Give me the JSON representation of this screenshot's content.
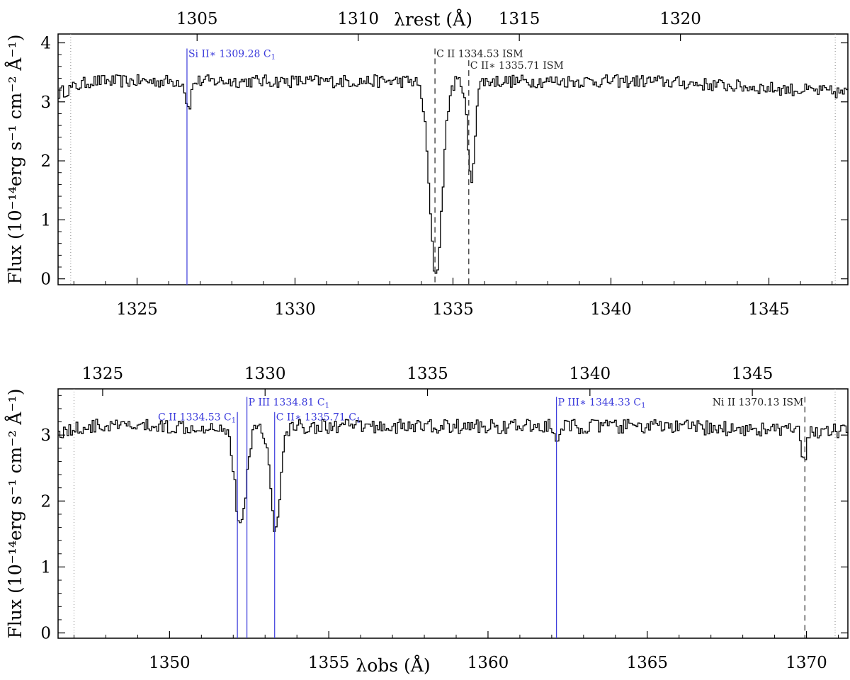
{
  "chart_data": [
    {
      "type": "line",
      "panel": "top",
      "xlabel_top": "λrest (Å)",
      "ylabel": "Flux (10⁻¹⁴erg s⁻¹ cm⁻² Å⁻¹)",
      "xlim": [
        1322.5,
        1347.5
      ],
      "ylim": [
        -0.1,
        4.15
      ],
      "x_ticks": [
        1325,
        1330,
        1335,
        1340,
        1345
      ],
      "y_ticks": [
        0,
        1,
        2,
        3,
        4
      ],
      "top_ticks": [
        {
          "label": "1305",
          "x": 1326.9
        },
        {
          "label": "1310",
          "x": 1332.0
        },
        {
          "label": "1315",
          "x": 1337.1
        },
        {
          "label": "1320",
          "x": 1342.2
        }
      ],
      "edge_dotted": [
        1322.9,
        1347.1
      ],
      "continuum": {
        "base": 3.35,
        "start": 3.15,
        "end": 3.15
      },
      "features": [
        {
          "center": 1326.6,
          "depth": 0.45,
          "width": 0.08
        },
        {
          "center": 1334.43,
          "depth": 3.27,
          "width": 0.2
        },
        {
          "center": 1335.55,
          "depth": 1.7,
          "width": 0.11
        }
      ],
      "lines": [
        {
          "x": 1326.58,
          "label": "Si II∗ 1309.28 C",
          "sub": "1",
          "color": "#3a3adb",
          "style": "solid",
          "ann_y": 3.76
        },
        {
          "x": 1334.43,
          "label": "C II 1334.53 ISM",
          "sub": "",
          "color": "#222222",
          "style": "dashed",
          "ann_y": 3.76
        },
        {
          "x": 1335.5,
          "label": "C II∗ 1335.71 ISM",
          "sub": "",
          "color": "#222222",
          "style": "dashed",
          "ann_y": 3.56
        }
      ]
    },
    {
      "type": "line",
      "panel": "bottom",
      "xlabel": "λobs (Å)",
      "ylabel": "Flux (10⁻¹⁴erg s⁻¹ cm⁻² Å⁻¹)",
      "xlim": [
        1346.5,
        1371.3
      ],
      "ylim": [
        -0.08,
        3.7
      ],
      "x_ticks": [
        1350,
        1355,
        1360,
        1365,
        1370
      ],
      "y_ticks": [
        0,
        1,
        2,
        3
      ],
      "top_ticks": [
        {
          "label": "1325",
          "x": 1347.9
        },
        {
          "label": "1330",
          "x": 1353.0
        },
        {
          "label": "1335",
          "x": 1358.1
        },
        {
          "label": "1340",
          "x": 1363.2
        },
        {
          "label": "1345",
          "x": 1368.3
        }
      ],
      "edge_dotted": [
        1347.0,
        1370.9
      ],
      "continuum": {
        "base": 3.13,
        "start": 3.05,
        "end": 3.05
      },
      "features": [
        {
          "center": 1352.2,
          "depth": 1.55,
          "width": 0.17
        },
        {
          "center": 1353.3,
          "depth": 1.6,
          "width": 0.15
        },
        {
          "center": 1362.15,
          "depth": 0.3,
          "width": 0.06
        },
        {
          "center": 1369.9,
          "depth": 0.5,
          "width": 0.08
        }
      ],
      "lines": [
        {
          "x": 1352.13,
          "label": "C II 1334.53 C",
          "sub": "1",
          "color": "#3a3adb",
          "style": "solid",
          "ann_y": 3.22,
          "anchor": "end"
        },
        {
          "x": 1352.43,
          "label": "P III 1334.81 C",
          "sub": "1",
          "color": "#3a3adb",
          "style": "solid",
          "ann_y": 3.45
        },
        {
          "x": 1353.3,
          "label": "C II∗ 1335.71 C",
          "sub": "1",
          "color": "#3a3adb",
          "style": "solid",
          "ann_y": 3.22
        },
        {
          "x": 1362.15,
          "label": "P III∗ 1344.33 C",
          "sub": "1",
          "color": "#3a3adb",
          "style": "solid",
          "ann_y": 3.45
        },
        {
          "x": 1369.95,
          "label": "Ni II 1370.13 ISM",
          "sub": "",
          "color": "#222222",
          "style": "dashed",
          "ann_y": 3.45,
          "anchor": "end"
        }
      ]
    }
  ]
}
